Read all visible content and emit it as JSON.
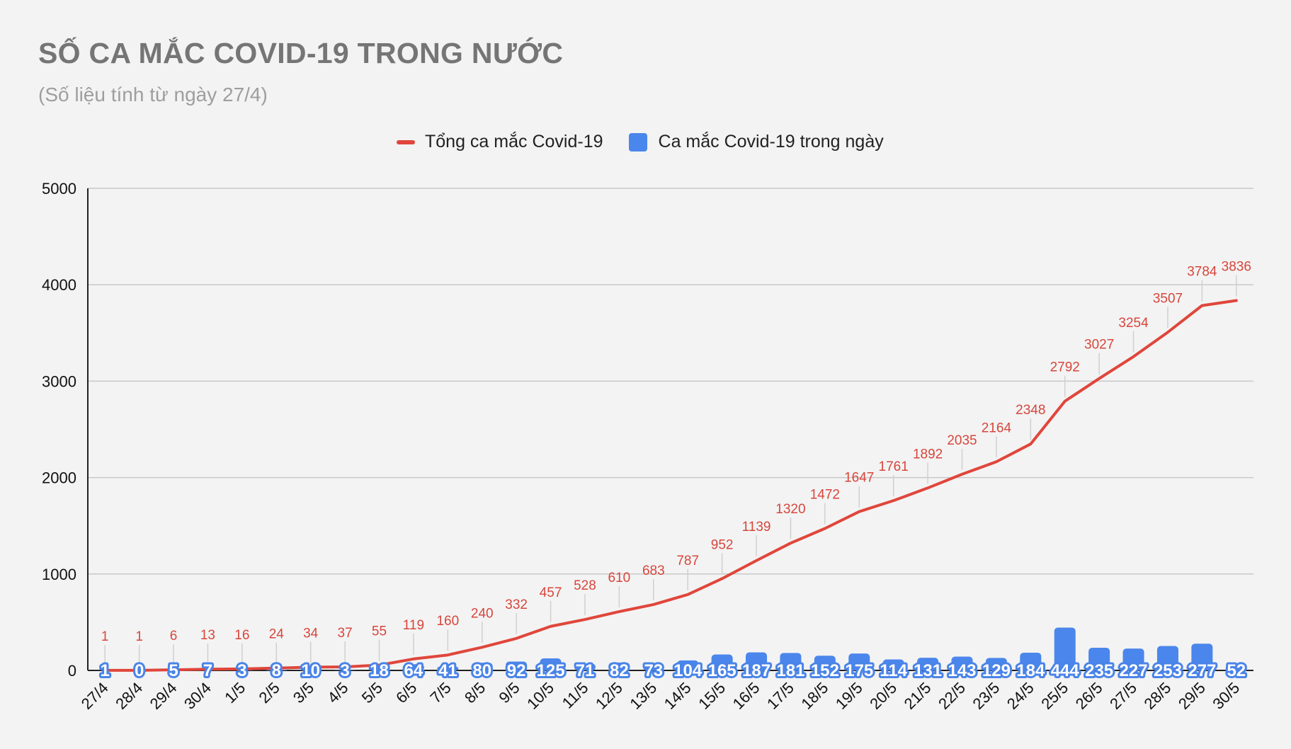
{
  "title": "SỐ CA MẮC COVID-19 TRONG NƯỚC",
  "subtitle": "(Số liệu tính từ ngày 27/4)",
  "colors": {
    "total": "#e0463b",
    "daily": "#4a86ec",
    "grid": "#c8c8c8"
  },
  "chart_data": {
    "type": "line+bar",
    "categories": [
      "27/4",
      "28/4",
      "29/4",
      "30/4",
      "1/5",
      "2/5",
      "3/5",
      "4/5",
      "5/5",
      "6/5",
      "7/5",
      "8/5",
      "9/5",
      "10/5",
      "11/5",
      "12/5",
      "13/5",
      "14/5",
      "15/5",
      "16/5",
      "17/5",
      "18/5",
      "19/5",
      "20/5",
      "21/5",
      "22/5",
      "23/5",
      "24/5",
      "25/5",
      "26/5",
      "27/5",
      "28/5",
      "29/5",
      "30/5"
    ],
    "series": [
      {
        "name": "Tổng ca mắc Covid-19",
        "kind": "line",
        "values": [
          1,
          1,
          6,
          13,
          16,
          24,
          34,
          37,
          55,
          119,
          160,
          240,
          332,
          457,
          528,
          610,
          683,
          787,
          952,
          1139,
          1320,
          1472,
          1647,
          1761,
          1892,
          2035,
          2164,
          2348,
          2792,
          3027,
          3254,
          3507,
          3784,
          3836
        ]
      },
      {
        "name": "Ca mắc Covid-19 trong ngày",
        "kind": "bar",
        "values": [
          1,
          0,
          5,
          7,
          3,
          8,
          10,
          3,
          18,
          64,
          41,
          80,
          92,
          125,
          71,
          82,
          73,
          104,
          165,
          187,
          181,
          152,
          175,
          114,
          131,
          143,
          129,
          184,
          444,
          235,
          227,
          253,
          277,
          52
        ]
      }
    ],
    "ylim": [
      0,
      5000
    ],
    "yticks": [
      0,
      1000,
      2000,
      3000,
      4000,
      5000
    ],
    "grid": true,
    "legend_position": "top"
  }
}
